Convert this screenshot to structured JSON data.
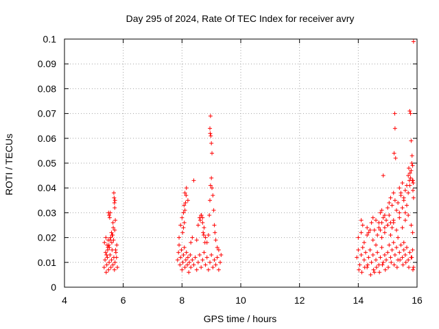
{
  "chart_data": {
    "type": "scatter",
    "title": "Day 295 of 2024, Rate Of TEC Index for receiver avry",
    "xlabel": "GPS time / hours",
    "ylabel": "ROTI / TECUs",
    "xlim": [
      4,
      16
    ],
    "ylim": [
      0,
      0.1
    ],
    "xticks": [
      "4",
      "6",
      "8",
      "10",
      "12",
      "14",
      "16"
    ],
    "yticks": [
      "0",
      "0.01",
      "0.02",
      "0.03",
      "0.04",
      "0.05",
      "0.06",
      "0.07",
      "0.08",
      "0.09",
      "0.1"
    ],
    "grid": true,
    "marker": "+",
    "marker_color": "#ff0000",
    "series": [
      {
        "name": "ROTI",
        "x": [
          5.35,
          5.38,
          5.4,
          5.42,
          5.44,
          5.46,
          5.48,
          5.5,
          5.52,
          5.55,
          5.58,
          5.6,
          5.62,
          5.65,
          5.68,
          5.7,
          5.72,
          5.75,
          5.78,
          5.8,
          5.36,
          5.41,
          5.45,
          5.49,
          5.53,
          5.57,
          5.61,
          5.64,
          5.67,
          5.71,
          5.74,
          5.77,
          5.5,
          5.52,
          5.54,
          5.56,
          5.68,
          5.69,
          5.7,
          5.71,
          5.72,
          5.73,
          5.65,
          5.66,
          5.6,
          5.62,
          5.43,
          5.47,
          5.51,
          5.55,
          7.85,
          7.88,
          7.9,
          7.93,
          7.95,
          7.98,
          8.0,
          8.03,
          8.05,
          8.08,
          8.1,
          8.13,
          8.15,
          8.18,
          8.2,
          8.23,
          8.25,
          8.28,
          8.3,
          8.35,
          8.4,
          8.45,
          8.5,
          8.55,
          8.6,
          8.65,
          8.7,
          8.75,
          8.8,
          8.85,
          8.9,
          8.95,
          9.0,
          9.05,
          9.1,
          9.15,
          9.2,
          9.25,
          9.3,
          9.33,
          7.9,
          7.95,
          8.0,
          8.02,
          8.05,
          8.07,
          8.1,
          8.15,
          8.2,
          8.3,
          8.35,
          8.4,
          8.5,
          8.55,
          8.6,
          8.65,
          8.7,
          8.72,
          8.75,
          8.8,
          8.85,
          8.9,
          8.93,
          8.95,
          8.97,
          9.0,
          9.02,
          9.05,
          9.08,
          9.1,
          9.12,
          9.15,
          9.2,
          9.25,
          8.95,
          8.97,
          8.98,
          9.0,
          9.02,
          8.96,
          8.62,
          8.66,
          8.7,
          8.74,
          8.78,
          8.1,
          8.12,
          8.14,
          8.05,
          8.08,
          13.95,
          14.0,
          14.05,
          14.1,
          14.15,
          14.2,
          14.25,
          14.3,
          14.35,
          14.4,
          14.45,
          14.5,
          14.55,
          14.6,
          14.65,
          14.7,
          14.75,
          14.8,
          14.85,
          14.9,
          14.95,
          15.0,
          15.05,
          15.1,
          15.15,
          15.2,
          15.25,
          15.3,
          15.35,
          15.4,
          15.45,
          15.5,
          15.55,
          15.6,
          15.65,
          15.7,
          15.75,
          15.8,
          15.85,
          15.88,
          14.0,
          14.1,
          14.2,
          14.3,
          14.4,
          14.5,
          14.6,
          14.7,
          14.8,
          14.9,
          15.0,
          15.1,
          15.2,
          15.3,
          15.4,
          15.5,
          15.6,
          15.7,
          15.8,
          15.85,
          14.02,
          14.12,
          14.22,
          14.32,
          14.42,
          14.52,
          14.62,
          14.72,
          14.82,
          14.92,
          15.02,
          15.12,
          15.22,
          15.32,
          15.42,
          15.52,
          15.62,
          15.72,
          15.82,
          15.86,
          14.5,
          14.6,
          14.7,
          14.75,
          14.8,
          14.9,
          15.0,
          15.05,
          15.1,
          15.15,
          15.2,
          15.25,
          15.3,
          15.35,
          15.4,
          15.45,
          15.5,
          15.55,
          15.6,
          15.65,
          15.7,
          15.75,
          15.78,
          15.8,
          15.82,
          15.84,
          15.86,
          15.88,
          15.22,
          15.24,
          15.25,
          15.27,
          15.75,
          15.78,
          15.8,
          15.83,
          15.85,
          15.86,
          15.87,
          15.88,
          14.75,
          14.8,
          14.85,
          14.9,
          14.95,
          15.0,
          15.05,
          15.1,
          15.15,
          15.2,
          15.4,
          15.45,
          15.5,
          15.55,
          15.6,
          15.65,
          15.7,
          15.72,
          15.74,
          15.76,
          14.1,
          14.15,
          14.3,
          14.35,
          14.45,
          14.55,
          14.65,
          14.85,
          15.35,
          15.55
        ],
        "y": [
          0.008,
          0.011,
          0.014,
          0.006,
          0.009,
          0.012,
          0.016,
          0.007,
          0.01,
          0.013,
          0.008,
          0.011,
          0.015,
          0.009,
          0.012,
          0.007,
          0.01,
          0.014,
          0.017,
          0.008,
          0.018,
          0.02,
          0.017,
          0.019,
          0.016,
          0.02,
          0.018,
          0.021,
          0.019,
          0.023,
          0.015,
          0.012,
          0.03,
          0.029,
          0.028,
          0.03,
          0.038,
          0.036,
          0.034,
          0.032,
          0.035,
          0.027,
          0.026,
          0.024,
          0.022,
          0.021,
          0.013,
          0.015,
          0.017,
          0.019,
          0.011,
          0.014,
          0.017,
          0.009,
          0.012,
          0.015,
          0.007,
          0.01,
          0.013,
          0.016,
          0.008,
          0.011,
          0.014,
          0.009,
          0.012,
          0.006,
          0.01,
          0.013,
          0.008,
          0.011,
          0.009,
          0.012,
          0.007,
          0.01,
          0.013,
          0.008,
          0.011,
          0.014,
          0.009,
          0.012,
          0.007,
          0.01,
          0.013,
          0.008,
          0.011,
          0.009,
          0.012,
          0.007,
          0.01,
          0.013,
          0.02,
          0.025,
          0.028,
          0.022,
          0.03,
          0.033,
          0.038,
          0.04,
          0.035,
          0.018,
          0.02,
          0.043,
          0.019,
          0.025,
          0.028,
          0.029,
          0.026,
          0.022,
          0.024,
          0.02,
          0.018,
          0.021,
          0.029,
          0.035,
          0.041,
          0.044,
          0.04,
          0.037,
          0.031,
          0.025,
          0.022,
          0.019,
          0.016,
          0.015,
          0.064,
          0.069,
          0.061,
          0.058,
          0.054,
          0.062,
          0.027,
          0.029,
          0.028,
          0.021,
          0.018,
          0.031,
          0.034,
          0.037,
          0.024,
          0.026,
          0.012,
          0.015,
          0.009,
          0.013,
          0.016,
          0.011,
          0.014,
          0.008,
          0.012,
          0.015,
          0.01,
          0.013,
          0.006,
          0.011,
          0.014,
          0.009,
          0.012,
          0.016,
          0.01,
          0.013,
          0.011,
          0.014,
          0.017,
          0.012,
          0.015,
          0.018,
          0.013,
          0.016,
          0.011,
          0.014,
          0.017,
          0.012,
          0.015,
          0.013,
          0.016,
          0.011,
          0.014,
          0.012,
          0.015,
          0.008,
          0.02,
          0.022,
          0.018,
          0.021,
          0.023,
          0.019,
          0.017,
          0.024,
          0.02,
          0.022,
          0.025,
          0.021,
          0.026,
          0.023,
          0.028,
          0.024,
          0.027,
          0.029,
          0.025,
          0.022,
          0.007,
          0.006,
          0.008,
          0.009,
          0.005,
          0.007,
          0.008,
          0.006,
          0.009,
          0.007,
          0.008,
          0.01,
          0.009,
          0.008,
          0.011,
          0.009,
          0.01,
          0.008,
          0.012,
          0.007,
          0.028,
          0.027,
          0.026,
          0.03,
          0.031,
          0.029,
          0.032,
          0.034,
          0.036,
          0.033,
          0.038,
          0.035,
          0.031,
          0.034,
          0.03,
          0.037,
          0.032,
          0.036,
          0.03,
          0.033,
          0.038,
          0.041,
          0.044,
          0.047,
          0.05,
          0.043,
          0.039,
          0.036,
          0.054,
          0.07,
          0.064,
          0.052,
          0.071,
          0.07,
          0.059,
          0.053,
          0.049,
          0.043,
          0.042,
          0.099,
          0.023,
          0.026,
          0.028,
          0.024,
          0.027,
          0.025,
          0.029,
          0.026,
          0.024,
          0.027,
          0.04,
          0.038,
          0.042,
          0.035,
          0.039,
          0.041,
          0.045,
          0.048,
          0.043,
          0.046,
          0.027,
          0.025,
          0.024,
          0.022,
          0.026,
          0.023,
          0.021,
          0.045,
          0.02,
          0.018
        ]
      }
    ]
  }
}
